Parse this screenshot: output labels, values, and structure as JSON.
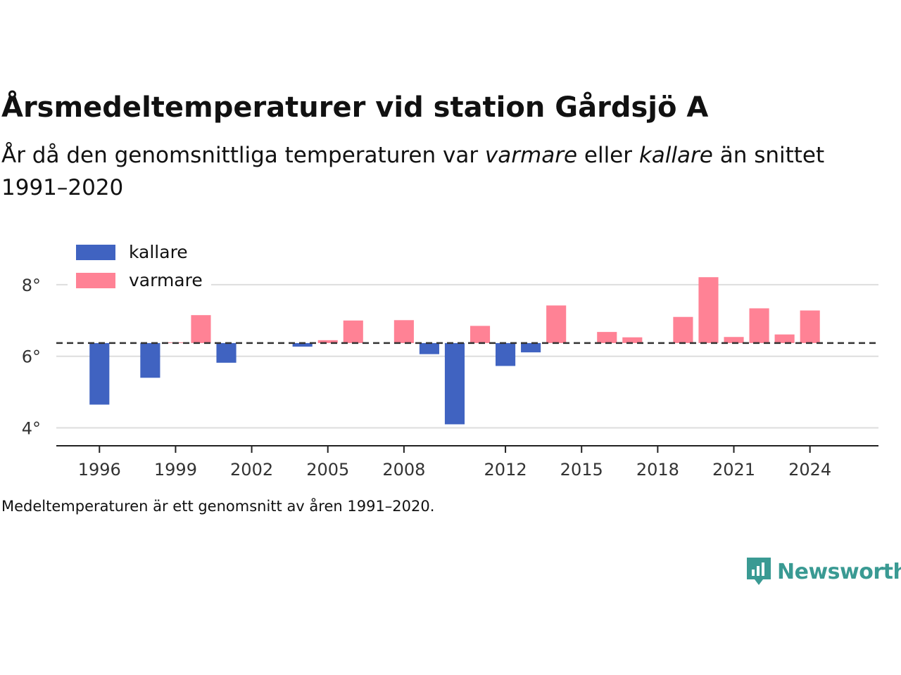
{
  "header": {
    "title": "Årsmedeltemperaturer vid station Gårdsjö A",
    "subtitle_before": "År då den genomsnittliga temperaturen var ",
    "subtitle_warm": "varmare",
    "subtitle_mid": " eller ",
    "subtitle_cold": "kallare",
    "subtitle_after": " än snittet 1991–2020"
  },
  "footnote": "Medeltemperaturen är ett genomsnitt av åren 1991–2020.",
  "brand": {
    "name": "Newsworthy",
    "icon": "newsworthy-logo-icon",
    "color": "#3a9a93"
  },
  "chart_data": {
    "type": "bar",
    "baseline": 6.37,
    "ylim": [
      3.5,
      9.0
    ],
    "xlim": [
      1994.3,
      2026.7
    ],
    "y_ticks": [
      {
        "value": 4,
        "label": "4°"
      },
      {
        "value": 6,
        "label": "6°"
      },
      {
        "value": 8,
        "label": "8°"
      }
    ],
    "x_ticks": [
      {
        "value": 1996,
        "label": "1996"
      },
      {
        "value": 1999,
        "label": "1999"
      },
      {
        "value": 2002,
        "label": "2002"
      },
      {
        "value": 2005,
        "label": "2005"
      },
      {
        "value": 2008,
        "label": "2008"
      },
      {
        "value": 2012,
        "label": "2012"
      },
      {
        "value": 2015,
        "label": "2015"
      },
      {
        "value": 2018,
        "label": "2018"
      },
      {
        "value": 2021,
        "label": "2021"
      },
      {
        "value": 2024,
        "label": "2024"
      }
    ],
    "legend": {
      "position": "top-left",
      "entries": [
        {
          "key": "kallare",
          "label": "kallare",
          "color": "#4063c1"
        },
        {
          "key": "varmare",
          "label": "varmare",
          "color": "#ff8295"
        }
      ]
    },
    "bars": [
      {
        "year": 1996,
        "value": 4.65
      },
      {
        "year": 1998,
        "value": 5.4
      },
      {
        "year": 1999,
        "value": 6.39
      },
      {
        "year": 2000,
        "value": 7.15
      },
      {
        "year": 2001,
        "value": 5.82
      },
      {
        "year": 2004,
        "value": 6.27
      },
      {
        "year": 2005,
        "value": 6.45
      },
      {
        "year": 2006,
        "value": 7.0
      },
      {
        "year": 2008,
        "value": 7.01
      },
      {
        "year": 2009,
        "value": 6.06
      },
      {
        "year": 2010,
        "value": 4.1
      },
      {
        "year": 2011,
        "value": 6.85
      },
      {
        "year": 2012,
        "value": 5.73
      },
      {
        "year": 2013,
        "value": 6.11
      },
      {
        "year": 2014,
        "value": 7.42
      },
      {
        "year": 2016,
        "value": 6.68
      },
      {
        "year": 2017,
        "value": 6.53
      },
      {
        "year": 2019,
        "value": 7.1
      },
      {
        "year": 2020,
        "value": 8.21
      },
      {
        "year": 2021,
        "value": 6.54
      },
      {
        "year": 2022,
        "value": 7.34
      },
      {
        "year": 2023,
        "value": 6.61
      },
      {
        "year": 2024,
        "value": 7.28
      }
    ]
  }
}
